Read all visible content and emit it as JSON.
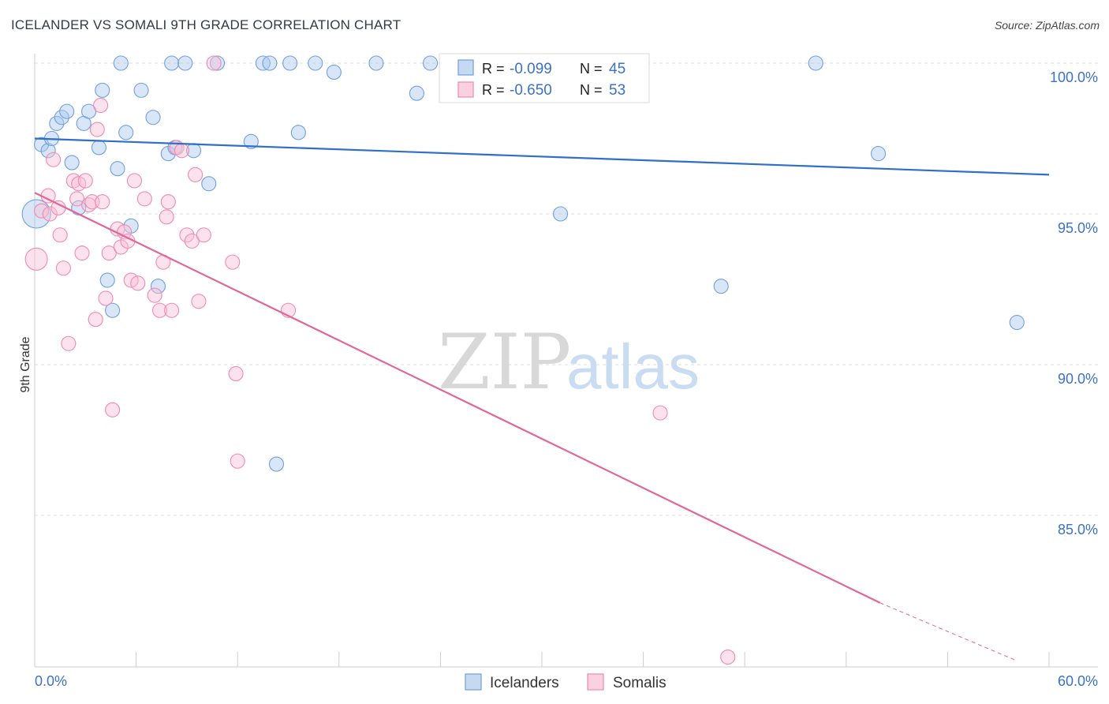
{
  "title": "ICELANDER VS SOMALI 9TH GRADE CORRELATION CHART",
  "source": "Source: ZipAtlas.com",
  "watermark": {
    "zip": "ZIP",
    "atlas": "atlas"
  },
  "colors": {
    "icelanders": "#6fa0dc",
    "somalis": "#f08ab0",
    "blue_line": "#2f6fc6",
    "pink_line": "#e0679a",
    "tick_text": "#3b72c4"
  },
  "legend": {
    "row1": {
      "r_label": "R = ",
      "r_value": "-0.099",
      "n_label": "N = ",
      "n_value": "45"
    },
    "row2": {
      "r_label": "R = ",
      "r_value": "-0.650",
      "n_label": "N = ",
      "n_value": "53"
    }
  },
  "bottom_legend": {
    "icelanders": "Icelanders",
    "somalis": "Somalis"
  },
  "chart_data": {
    "type": "scatter",
    "ylabel": "9th Grade",
    "xlim": [
      0,
      60
    ],
    "ylim": [
      80.2,
      101.0
    ],
    "x_tick_labels": {
      "left": "0.0%",
      "right": "60.0%"
    },
    "y_ticks": [
      {
        "value": 100,
        "label": "100.0%"
      },
      {
        "value": 95,
        "label": "95.0%"
      },
      {
        "value": 90,
        "label": "90.0%"
      },
      {
        "value": 85,
        "label": "85.0%"
      }
    ],
    "grid": true,
    "legend_position": "top-center",
    "series": [
      {
        "name": "Icelanders",
        "color": "#6fa0dc",
        "trend": {
          "x0": 0,
          "y0": 97.5,
          "x1": 60,
          "y1": 96.3
        },
        "points": [
          [
            0.1,
            95.0,
            18
          ],
          [
            0.4,
            97.3,
            9
          ],
          [
            0.8,
            97.1,
            9
          ],
          [
            1.0,
            97.5,
            9
          ],
          [
            1.3,
            98.0,
            9
          ],
          [
            1.6,
            98.2,
            9
          ],
          [
            1.9,
            98.4,
            9
          ],
          [
            2.2,
            96.7,
            9
          ],
          [
            2.6,
            95.2,
            9
          ],
          [
            2.9,
            98.0,
            9
          ],
          [
            3.2,
            98.4,
            9
          ],
          [
            3.8,
            97.2,
            9
          ],
          [
            4.0,
            99.1,
            9
          ],
          [
            4.3,
            92.8,
            9
          ],
          [
            4.6,
            91.8,
            9
          ],
          [
            4.9,
            96.5,
            9
          ],
          [
            5.1,
            100.0,
            9
          ],
          [
            5.4,
            97.7,
            9
          ],
          [
            5.7,
            94.6,
            9
          ],
          [
            6.3,
            99.1,
            9
          ],
          [
            7.0,
            98.2,
            9
          ],
          [
            7.3,
            92.6,
            9
          ],
          [
            7.9,
            97.0,
            9
          ],
          [
            8.1,
            100.0,
            9
          ],
          [
            8.3,
            97.2,
            9
          ],
          [
            8.9,
            100.0,
            9
          ],
          [
            9.4,
            97.1,
            9
          ],
          [
            10.3,
            96.0,
            9
          ],
          [
            10.8,
            100.0,
            9
          ],
          [
            12.8,
            97.4,
            9
          ],
          [
            13.5,
            100.0,
            9
          ],
          [
            13.9,
            100.0,
            9
          ],
          [
            14.3,
            86.7,
            9
          ],
          [
            15.1,
            100.0,
            9
          ],
          [
            15.6,
            97.7,
            9
          ],
          [
            16.6,
            100.0,
            9
          ],
          [
            17.7,
            99.7,
            9
          ],
          [
            20.2,
            100.0,
            9
          ],
          [
            22.6,
            99.0,
            9
          ],
          [
            23.4,
            100.0,
            9
          ],
          [
            27.1,
            100.0,
            9
          ],
          [
            31.1,
            95.0,
            9
          ],
          [
            40.6,
            92.6,
            9
          ],
          [
            46.2,
            100.0,
            9
          ],
          [
            49.9,
            97.0,
            9
          ],
          [
            58.1,
            91.4,
            9
          ]
        ]
      },
      {
        "name": "Somalis",
        "color": "#f08ab0",
        "trend": {
          "x0": 0,
          "y0": 95.7,
          "x1": 50,
          "y1": 82.1,
          "dash_x1": 58,
          "dash_y1": 80.2
        },
        "points": [
          [
            0.1,
            93.5,
            14
          ],
          [
            0.4,
            95.1,
            9
          ],
          [
            0.8,
            95.6,
            9
          ],
          [
            0.9,
            95.0,
            9
          ],
          [
            1.1,
            96.8,
            9
          ],
          [
            1.4,
            95.2,
            9
          ],
          [
            1.5,
            94.3,
            9
          ],
          [
            1.7,
            93.2,
            9
          ],
          [
            2.0,
            90.7,
            9
          ],
          [
            2.3,
            96.1,
            9
          ],
          [
            2.5,
            95.5,
            9
          ],
          [
            2.6,
            96.0,
            9
          ],
          [
            2.8,
            93.7,
            9
          ],
          [
            3.0,
            96.1,
            9
          ],
          [
            3.2,
            95.3,
            9
          ],
          [
            3.4,
            95.4,
            9
          ],
          [
            3.6,
            91.5,
            9
          ],
          [
            3.7,
            97.8,
            9
          ],
          [
            3.9,
            98.6,
            9
          ],
          [
            4.0,
            95.4,
            9
          ],
          [
            4.2,
            92.2,
            9
          ],
          [
            4.4,
            93.7,
            9
          ],
          [
            4.6,
            88.5,
            9
          ],
          [
            4.9,
            94.5,
            9
          ],
          [
            5.1,
            93.9,
            9
          ],
          [
            5.3,
            94.4,
            9
          ],
          [
            5.5,
            94.1,
            9
          ],
          [
            5.7,
            92.8,
            9
          ],
          [
            5.9,
            96.1,
            9
          ],
          [
            6.1,
            92.7,
            9
          ],
          [
            6.5,
            95.5,
            9
          ],
          [
            7.1,
            92.3,
            9
          ],
          [
            7.4,
            91.8,
            9
          ],
          [
            7.6,
            93.4,
            9
          ],
          [
            7.8,
            94.9,
            9
          ],
          [
            7.9,
            95.4,
            9
          ],
          [
            8.1,
            91.8,
            9
          ],
          [
            8.4,
            97.2,
            9
          ],
          [
            8.7,
            97.1,
            9
          ],
          [
            9.0,
            94.3,
            9
          ],
          [
            9.3,
            94.1,
            9
          ],
          [
            9.5,
            96.3,
            9
          ],
          [
            9.7,
            92.1,
            9
          ],
          [
            10.0,
            94.3,
            9
          ],
          [
            10.6,
            100.0,
            9
          ],
          [
            11.7,
            93.4,
            9
          ],
          [
            11.9,
            89.7,
            9
          ],
          [
            12.0,
            86.8,
            9
          ],
          [
            15.0,
            91.8,
            9
          ],
          [
            37.0,
            88.4,
            9
          ],
          [
            41.0,
            80.3,
            9
          ]
        ]
      }
    ]
  }
}
